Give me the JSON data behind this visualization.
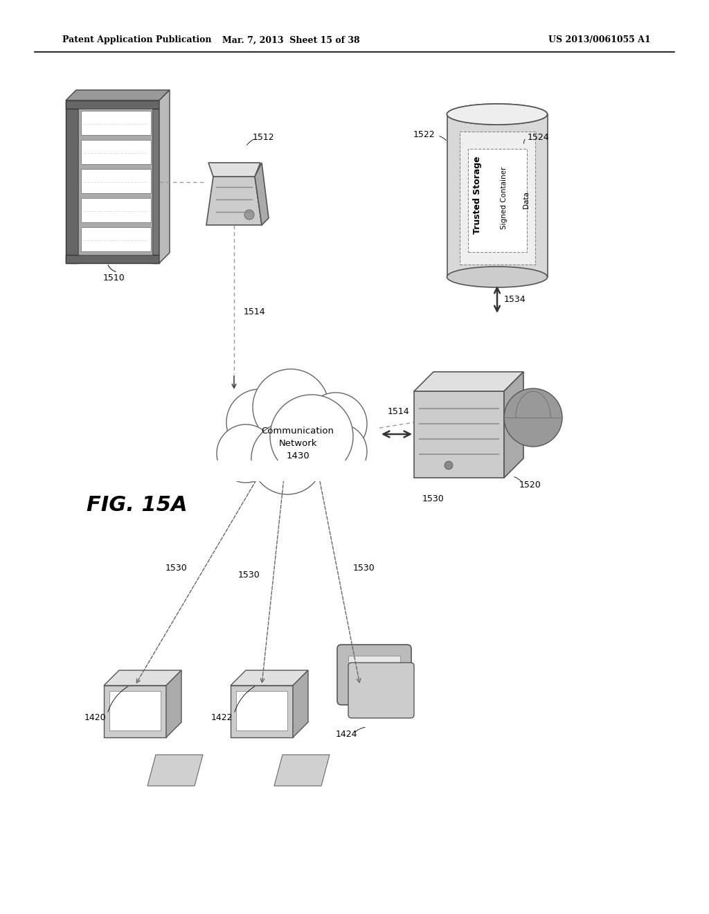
{
  "bg_color": "#ffffff",
  "header_left": "Patent Application Publication",
  "header_mid": "Mar. 7, 2013  Sheet 15 of 38",
  "header_right": "US 2013/0061055 A1",
  "fig_label": "FIG. 15A",
  "network_label": "Communication\nNetwork\n1430",
  "trusted_storage_label": "Trusted Storage",
  "signed_container_label": "Signed Container",
  "data_label": "Data",
  "gray_light": "#dddddd",
  "gray_mid": "#bbbbbb",
  "gray_dark": "#888888",
  "line_color": "#555555",
  "arrow_color": "#333333",
  "dashed_color": "#999999"
}
